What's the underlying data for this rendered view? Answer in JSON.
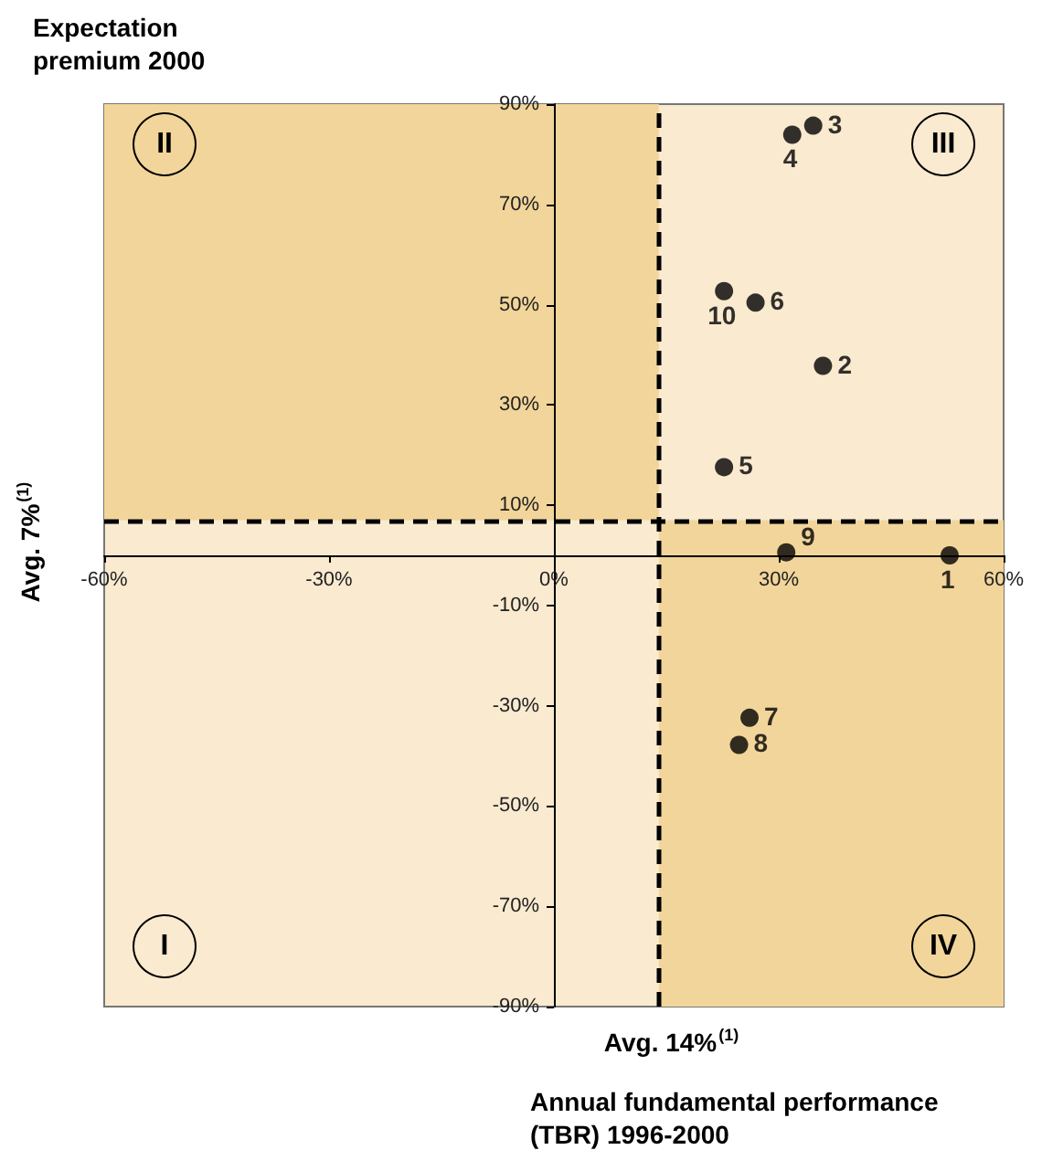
{
  "chart_data": {
    "type": "scatter",
    "ylabel": "Expectation premium 2000",
    "xlabel": "Annual fundamental performance (TBR) 1996-2000",
    "series": [
      {
        "name": "1",
        "color": "#000000",
        "x": [
          52.8
        ],
        "values": [
          0
        ]
      },
      {
        "name": "2",
        "color": "#000000",
        "x": [
          35.9
        ],
        "values": [
          37.8
        ]
      },
      {
        "name": "3",
        "color": "#000000",
        "x": [
          34.6
        ],
        "values": [
          85.7
        ]
      },
      {
        "name": "4",
        "color": "#000000",
        "x": [
          31.8
        ],
        "values": [
          83.9
        ]
      },
      {
        "name": "5",
        "color": "#000000",
        "x": [
          22.7
        ],
        "values": [
          17.6
        ]
      },
      {
        "name": "6",
        "color": "#000000",
        "x": [
          26.9
        ],
        "values": [
          50.4
        ]
      },
      {
        "name": "7",
        "color": "#000000",
        "x": [
          26.1
        ],
        "values": [
          -32.4
        ]
      },
      {
        "name": "8",
        "color": "#000000",
        "x": [
          24.7
        ],
        "values": [
          -37.8
        ]
      },
      {
        "name": "9",
        "color": "#000000",
        "x": [
          31
        ],
        "values": [
          0.6
        ]
      },
      {
        "name": "10",
        "color": "#000000",
        "x": [
          22.7
        ],
        "values": [
          52.7
        ]
      }
    ],
    "marker": "circle",
    "xlim": [
      -60,
      60
    ],
    "xticks": [
      {
        "value": -60,
        "label": "-60%"
      },
      {
        "value": -30,
        "label": "-30%"
      },
      {
        "value": 0,
        "label": "0%"
      },
      {
        "value": 30,
        "label": "30%"
      },
      {
        "value": 60,
        "label": "60%"
      }
    ],
    "ylim": [
      -90,
      90
    ],
    "yticks": [
      {
        "value": -90,
        "label": "-90%"
      },
      {
        "value": -70,
        "label": "-70%"
      },
      {
        "value": -50,
        "label": "-50%"
      },
      {
        "value": -30,
        "label": "-30%"
      },
      {
        "value": -10,
        "label": "-10%"
      },
      {
        "value": 10,
        "label": "10%"
      },
      {
        "value": 30,
        "label": "30%"
      },
      {
        "value": 50,
        "label": "50%"
      },
      {
        "value": 70,
        "label": "70%"
      },
      {
        "value": 90,
        "label": "90%"
      }
    ],
    "ref_lines": [
      {
        "axis": "x",
        "value": 14,
        "label": "Avg. 14%$^{(1)}$",
        "color": "#000000",
        "line_style": "dashed"
      },
      {
        "axis": "y",
        "value": 7,
        "label": "Avg. 7%$^{(1)}$",
        "color": "#000000",
        "line_style": "dashed"
      }
    ],
    "bands": [
      {
        "axis": "x",
        "from": -60,
        "to": 14,
        "color": "#f2d59a"
      },
      {
        "axis": "y",
        "from": -90,
        "to": 7,
        "color": "#f2d59a"
      }
    ],
    "annotations": [
      "II",
      "III",
      "I",
      "IV"
    ]
  }
}
